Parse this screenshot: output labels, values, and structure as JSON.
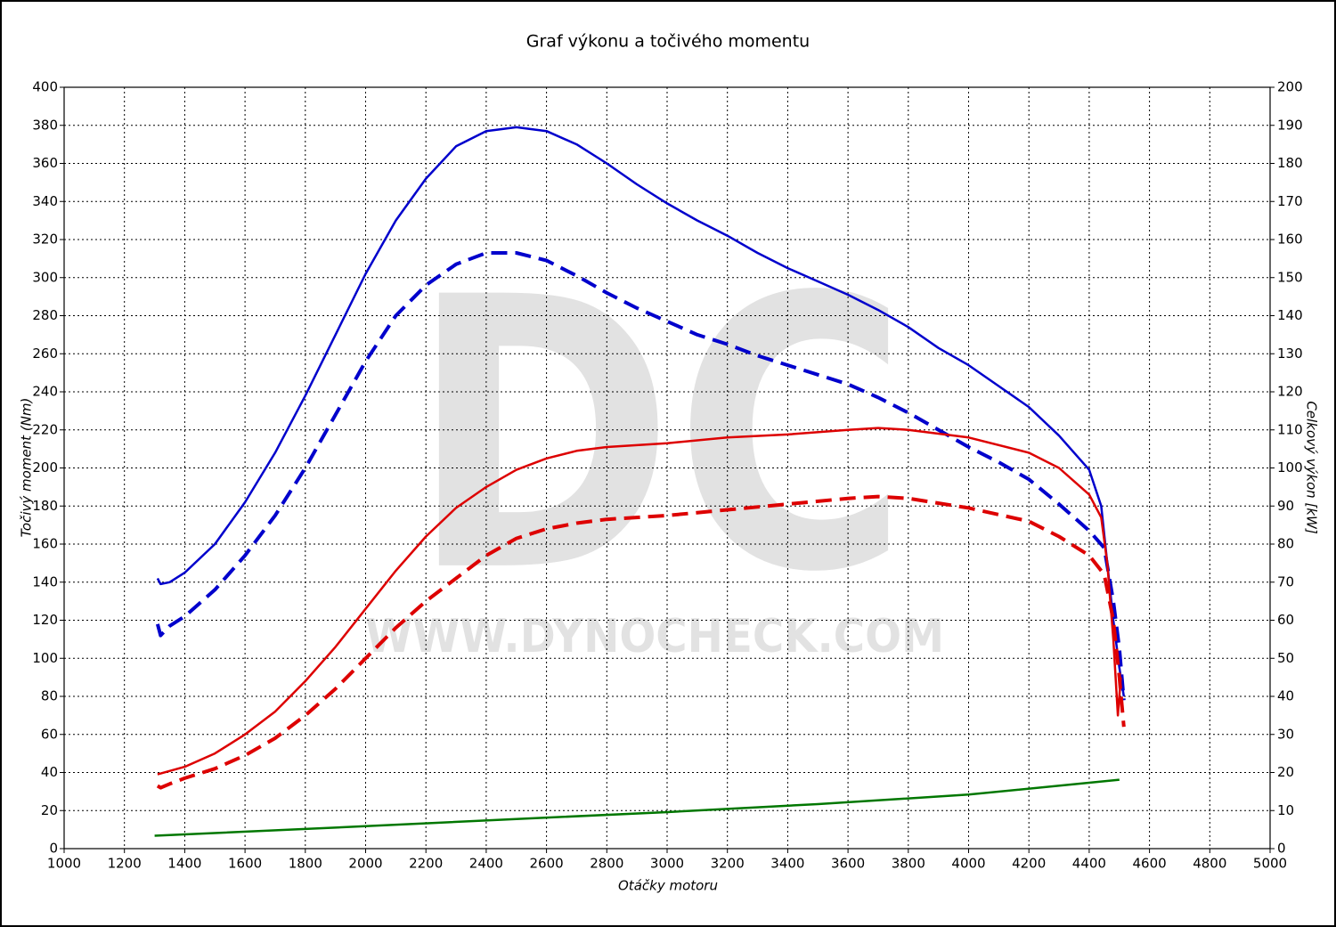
{
  "chart_data": {
    "type": "line",
    "title": "Graf výkonu a točivého momentu",
    "xlabel": "Otáčky motoru",
    "ylabel": "Točivý moment (Nm)",
    "y2label": "Celkový výkon [kW]",
    "watermark": "DC",
    "watermark_url": "WWW.DYNOCHECK.COM",
    "grid": true,
    "xlim": [
      1000,
      5000
    ],
    "ylim": [
      0,
      400
    ],
    "y2lim": [
      0,
      200
    ],
    "xticks": [
      1000,
      1200,
      1400,
      1600,
      1800,
      2000,
      2200,
      2400,
      2600,
      2800,
      3000,
      3200,
      3400,
      3600,
      3800,
      4000,
      4200,
      4400,
      4600,
      4800,
      5000
    ],
    "yticks": [
      0,
      20,
      40,
      60,
      80,
      100,
      120,
      140,
      160,
      180,
      200,
      220,
      240,
      260,
      280,
      300,
      320,
      340,
      360,
      380,
      400
    ],
    "y2ticks": [
      0,
      10,
      20,
      30,
      40,
      50,
      60,
      70,
      80,
      90,
      100,
      110,
      120,
      130,
      140,
      150,
      160,
      170,
      180,
      190,
      200
    ],
    "series": [
      {
        "color": "#0000cc",
        "dash": false,
        "axis": "y",
        "x": [
          1310,
          1320,
          1350,
          1400,
          1500,
          1600,
          1700,
          1800,
          1900,
          2000,
          2100,
          2200,
          2300,
          2400,
          2500,
          2600,
          2700,
          2800,
          2900,
          3000,
          3100,
          3200,
          3300,
          3400,
          3500,
          3600,
          3700,
          3800,
          3900,
          4000,
          4100,
          4200,
          4300,
          4400,
          4440,
          4460,
          4480,
          4500,
          4515
        ],
        "values": [
          142,
          139,
          140,
          145,
          160,
          182,
          208,
          238,
          270,
          302,
          330,
          352,
          369,
          377,
          379,
          377,
          370,
          360,
          349,
          339,
          330,
          322,
          313,
          305,
          298,
          291,
          283,
          274,
          263,
          254,
          243,
          232,
          217,
          199,
          180,
          150,
          120,
          95,
          80
        ]
      },
      {
        "color": "#0000cc",
        "dash": true,
        "axis": "y",
        "x": [
          1310,
          1320,
          1350,
          1400,
          1500,
          1600,
          1700,
          1800,
          1900,
          2000,
          2100,
          2200,
          2300,
          2400,
          2500,
          2600,
          2700,
          2800,
          2900,
          3000,
          3100,
          3200,
          3300,
          3400,
          3500,
          3600,
          3700,
          3800,
          3900,
          4000,
          4100,
          4200,
          4300,
          4400,
          4450,
          4480,
          4500,
          4515
        ],
        "values": [
          118,
          112,
          117,
          122,
          136,
          154,
          175,
          200,
          228,
          256,
          280,
          296,
          307,
          313,
          313,
          309,
          301,
          292,
          284,
          277,
          270,
          265,
          259,
          254,
          249,
          244,
          237,
          229,
          220,
          211,
          203,
          194,
          181,
          167,
          158,
          130,
          105,
          78
        ]
      },
      {
        "color": "#dd0000",
        "dash": false,
        "axis": "y2",
        "x": [
          1310,
          1400,
          1500,
          1600,
          1700,
          1800,
          1900,
          2000,
          2100,
          2200,
          2300,
          2400,
          2500,
          2600,
          2700,
          2800,
          3000,
          3200,
          3400,
          3600,
          3700,
          3800,
          4000,
          4200,
          4300,
          4400,
          4440,
          4460,
          4480,
          4495,
          4505
        ],
        "values": [
          19.5,
          21.5,
          25,
          30,
          36,
          44,
          53,
          63,
          73,
          82,
          89.5,
          95,
          99.5,
          102.5,
          104.5,
          105.5,
          106.5,
          108,
          108.8,
          110,
          110.5,
          110,
          108,
          104,
          100,
          93,
          87,
          75,
          55,
          35,
          45
        ]
      },
      {
        "color": "#dd0000",
        "dash": true,
        "axis": "y2",
        "x": [
          1310,
          1320,
          1350,
          1400,
          1500,
          1600,
          1700,
          1800,
          1900,
          2000,
          2100,
          2200,
          2300,
          2400,
          2500,
          2600,
          2700,
          2800,
          3000,
          3200,
          3400,
          3600,
          3700,
          3800,
          4000,
          4200,
          4300,
          4400,
          4450,
          4480,
          4500,
          4515
        ],
        "values": [
          16.5,
          16,
          17,
          18.5,
          21,
          24.5,
          29,
          35,
          42,
          50,
          58,
          65,
          71,
          77,
          81.5,
          84,
          85.5,
          86.5,
          87.5,
          89,
          90.5,
          92,
          92.5,
          92,
          89.5,
          86,
          82,
          77,
          72,
          60,
          45,
          32
        ]
      },
      {
        "color": "#007700",
        "dash": false,
        "axis": "y2",
        "x": [
          1300,
          2000,
          2500,
          3000,
          3500,
          4000,
          4500
        ],
        "values": [
          3.4,
          5.9,
          7.8,
          9.6,
          11.7,
          14.2,
          18.1
        ]
      }
    ]
  }
}
